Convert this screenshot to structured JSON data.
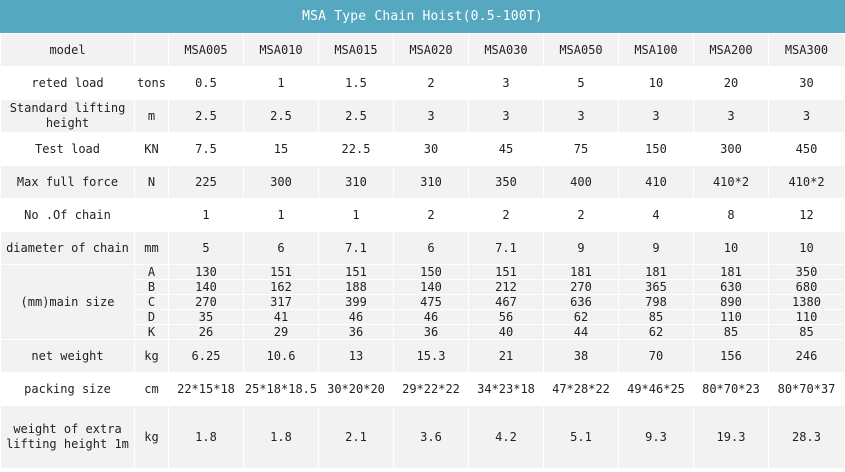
{
  "title": "MSA Type Chain Hoist(0.5-100T)",
  "header": {
    "label": "model",
    "unit": "",
    "models": [
      "MSA005",
      "MSA010",
      "MSA015",
      "MSA020",
      "MSA030",
      "MSA050",
      "MSA100",
      "MSA200",
      "MSA300"
    ]
  },
  "rows": [
    {
      "label": "reted load",
      "unit": "tons",
      "values": [
        "0.5",
        "1",
        "1.5",
        "2",
        "3",
        "5",
        "10",
        "20",
        "30"
      ]
    },
    {
      "label": "Standard lifting height",
      "unit": "m",
      "values": [
        "2.5",
        "2.5",
        "2.5",
        "3",
        "3",
        "3",
        "3",
        "3",
        "3"
      ]
    },
    {
      "label": "Test load",
      "unit": "KN",
      "values": [
        "7.5",
        "15",
        "22.5",
        "30",
        "45",
        "75",
        "150",
        "300",
        "450"
      ]
    },
    {
      "label": "Max full force",
      "unit": "N",
      "values": [
        "225",
        "300",
        "310",
        "310",
        "350",
        "400",
        "410",
        "410*2",
        "410*2"
      ]
    },
    {
      "label": "No .Of chain",
      "unit": "",
      "values": [
        "1",
        "1",
        "1",
        "2",
        "2",
        "2",
        "4",
        "8",
        "12"
      ]
    },
    {
      "label": "diameter of chain",
      "unit": "mm",
      "values": [
        "5",
        "6",
        "7.1",
        "6",
        "7.1",
        "9",
        "9",
        "10",
        "10"
      ]
    }
  ],
  "main_size": {
    "label": "(mm)main size",
    "rows": [
      {
        "key": "A",
        "values": [
          "130",
          "151",
          "151",
          "150",
          "151",
          "181",
          "181",
          "181",
          "350"
        ]
      },
      {
        "key": "B",
        "values": [
          "140",
          "162",
          "188",
          "140",
          "212",
          "270",
          "365",
          "630",
          "680"
        ]
      },
      {
        "key": "C",
        "values": [
          "270",
          "317",
          "399",
          "475",
          "467",
          "636",
          "798",
          "890",
          "1380"
        ]
      },
      {
        "key": "D",
        "values": [
          "35",
          "41",
          "46",
          "46",
          "56",
          "62",
          "85",
          "110",
          "110"
        ]
      },
      {
        "key": "K",
        "values": [
          "26",
          "29",
          "36",
          "36",
          "40",
          "44",
          "62",
          "85",
          "85"
        ]
      }
    ]
  },
  "rows_after": [
    {
      "label": "net weight",
      "unit": "kg",
      "values": [
        "6.25",
        "10.6",
        "13",
        "15.3",
        "21",
        "38",
        "70",
        "156",
        "246"
      ]
    },
    {
      "label": "packing size",
      "unit": "cm",
      "values": [
        "22*15*18",
        "25*18*18.5",
        "30*20*20",
        "29*22*22",
        "34*23*18",
        "47*28*22",
        "49*46*25",
        "80*70*23",
        "80*70*37"
      ]
    },
    {
      "label": "weight of extra lifting height 1m",
      "unit": "kg",
      "values": [
        "1.8",
        "1.8",
        "2.1",
        "3.6",
        "4.2",
        "5.1",
        "9.3",
        "19.3",
        "28.3"
      ]
    }
  ]
}
